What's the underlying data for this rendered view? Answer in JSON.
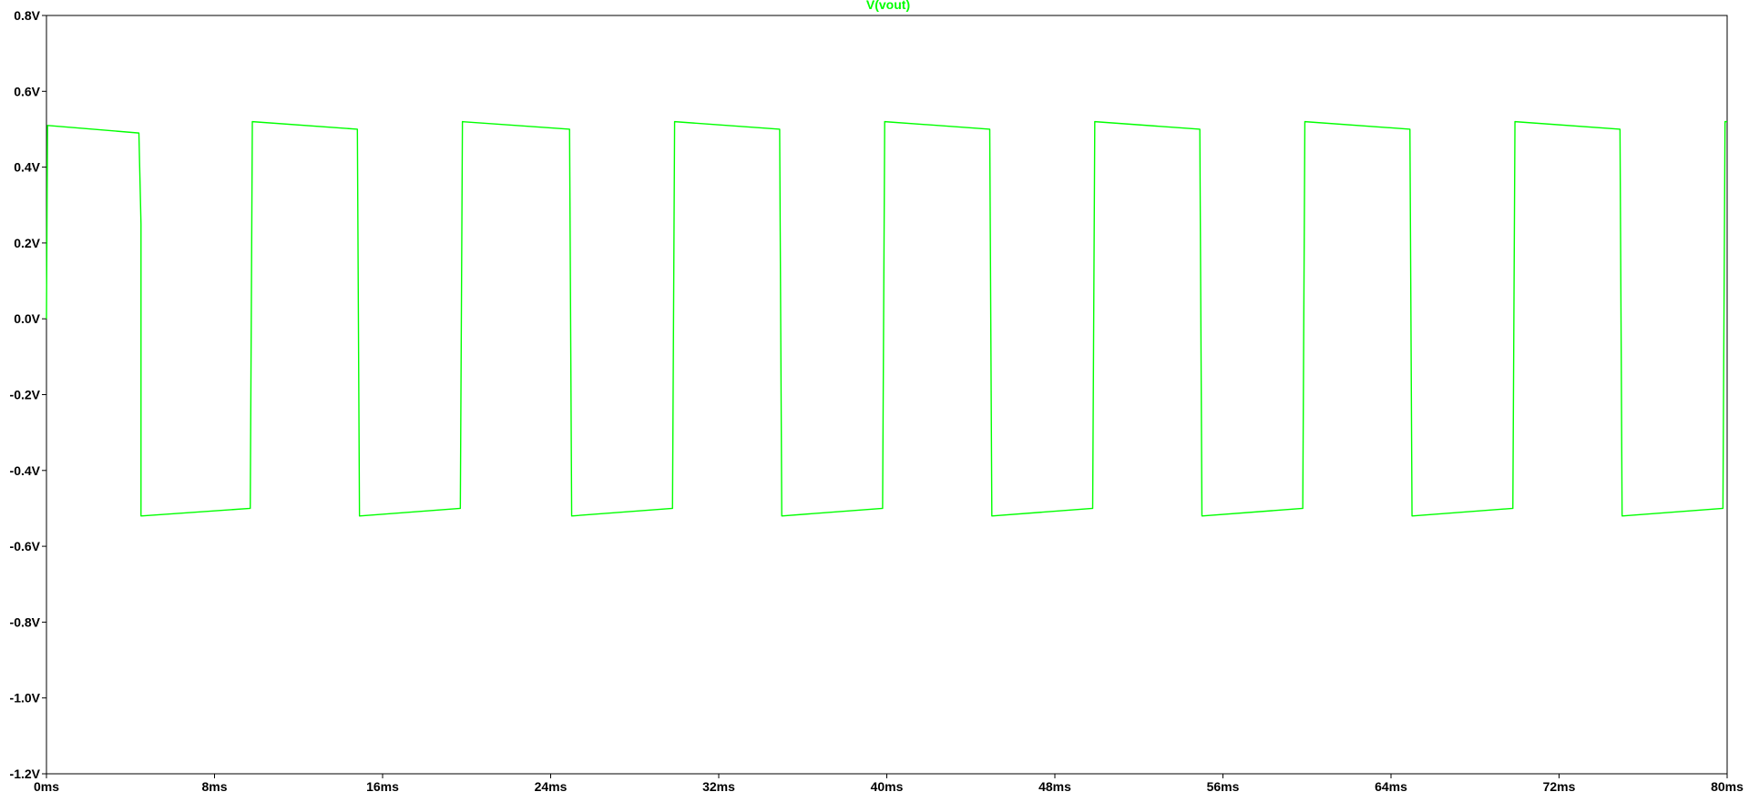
{
  "chart_data": {
    "type": "line",
    "title": "V(vout)",
    "title_color": "#00ff00",
    "trace_color": "#00ff00",
    "xlabel": "",
    "ylabel": "",
    "xlim": [
      0,
      80
    ],
    "ylim": [
      -1.2,
      0.8
    ],
    "grid": false,
    "x_ticks": [
      0,
      8,
      16,
      24,
      32,
      40,
      48,
      56,
      64,
      72,
      80
    ],
    "x_tick_labels": [
      "0ms",
      "8ms",
      "16ms",
      "24ms",
      "32ms",
      "40ms",
      "48ms",
      "56ms",
      "64ms",
      "72ms",
      "80ms"
    ],
    "y_ticks": [
      0.8,
      0.6,
      0.4,
      0.2,
      0.0,
      -0.2,
      -0.4,
      -0.6,
      -0.8,
      -1.0,
      -1.2
    ],
    "y_tick_labels": [
      "0.8V",
      "0.6V",
      "0.4V",
      "0.2V",
      "0.0V",
      "-0.2V",
      "-0.4V",
      "-0.6V",
      "-0.8V",
      "-1.0V",
      "-1.2V"
    ],
    "series": [
      {
        "name": "V(vout)",
        "points": [
          [
            0.0,
            0.0
          ],
          [
            0.05,
            0.51
          ],
          [
            4.4,
            0.49
          ],
          [
            4.5,
            0.25
          ],
          [
            4.5,
            -0.52
          ],
          [
            9.7,
            -0.5
          ],
          [
            9.8,
            0.52
          ],
          [
            14.8,
            0.5
          ],
          [
            14.9,
            -0.52
          ],
          [
            19.7,
            -0.5
          ],
          [
            19.8,
            0.52
          ],
          [
            24.9,
            0.5
          ],
          [
            25.0,
            -0.52
          ],
          [
            29.8,
            -0.5
          ],
          [
            29.9,
            0.52
          ],
          [
            34.9,
            0.5
          ],
          [
            35.0,
            -0.52
          ],
          [
            39.8,
            -0.5
          ],
          [
            39.9,
            0.52
          ],
          [
            44.9,
            0.5
          ],
          [
            45.0,
            -0.52
          ],
          [
            49.8,
            -0.5
          ],
          [
            49.9,
            0.52
          ],
          [
            54.9,
            0.5
          ],
          [
            55.0,
            -0.52
          ],
          [
            59.8,
            -0.5
          ],
          [
            59.9,
            0.52
          ],
          [
            64.9,
            0.5
          ],
          [
            65.0,
            -0.52
          ],
          [
            69.8,
            -0.5
          ],
          [
            69.9,
            0.52
          ],
          [
            74.9,
            0.5
          ],
          [
            75.0,
            -0.52
          ],
          [
            79.8,
            -0.5
          ],
          [
            79.9,
            0.52
          ],
          [
            80.0,
            0.52
          ]
        ]
      }
    ]
  }
}
